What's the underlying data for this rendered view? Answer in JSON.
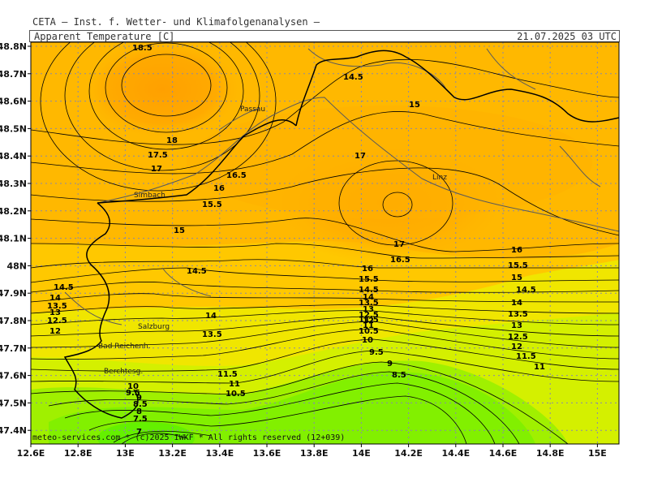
{
  "header": {
    "institute": "CETA — Inst. f. Wetter- und Klimafolgenanalysen —",
    "parameter": "Apparent Temperature [C]",
    "valid_time": "21.07.2025 03 UTC"
  },
  "footer": {
    "copyright": "meteo-services.com * (c)2025 IWKF * All rights reserved (12+039)"
  },
  "axes": {
    "lat_labels": [
      "48.8N",
      "48.7N",
      "48.6N",
      "48.5N",
      "48.4N",
      "48.3N",
      "48.2N",
      "48.1N",
      "48N",
      "47.9N",
      "47.8N",
      "47.7N",
      "47.6N",
      "47.5N",
      "47.4N"
    ],
    "lon_labels": [
      "12.6E",
      "12.8E",
      "13E",
      "13.2E",
      "13.4E",
      "13.6E",
      "13.8E",
      "14E",
      "14.2E",
      "14.4E",
      "14.6E",
      "14.8E",
      "15E"
    ]
  },
  "places": [
    "Passau",
    "Linz",
    "Simbach",
    "Salzburg",
    "Bad Reichenh.",
    "Berchtesg."
  ],
  "contour_labels": [
    "18.5",
    "14.5",
    "15",
    "18",
    "17.5",
    "17",
    "16.5",
    "16",
    "15.5",
    "17",
    "17",
    "16.5",
    "16",
    "15.5",
    "15",
    "14.5",
    "14",
    "13.5",
    "14.5",
    "14",
    "13.5",
    "13",
    "12.5",
    "12",
    "14.5",
    "14",
    "13.5",
    "13",
    "12.5",
    "12",
    "11.5",
    "11",
    "10.5",
    "16",
    "15.5",
    "15",
    "14.5",
    "14",
    "13.5",
    "13",
    "12.5",
    "12",
    "11.5",
    "11",
    "10",
    "9.5",
    "9",
    "8.5",
    "11.5",
    "11",
    "10.5",
    "10",
    "9.5",
    "9",
    "8.5",
    "8",
    "7.5",
    "7"
  ],
  "colors": {
    "background_band": "#ffc800",
    "warm_core": "#ffa800",
    "mid_band": "#e6f000",
    "cool_band": "#96f000",
    "cold_core": "#6ef000",
    "contour": "#000000",
    "border": "#000000",
    "river": "#5a5a5a",
    "grid": "#8888aa"
  }
}
